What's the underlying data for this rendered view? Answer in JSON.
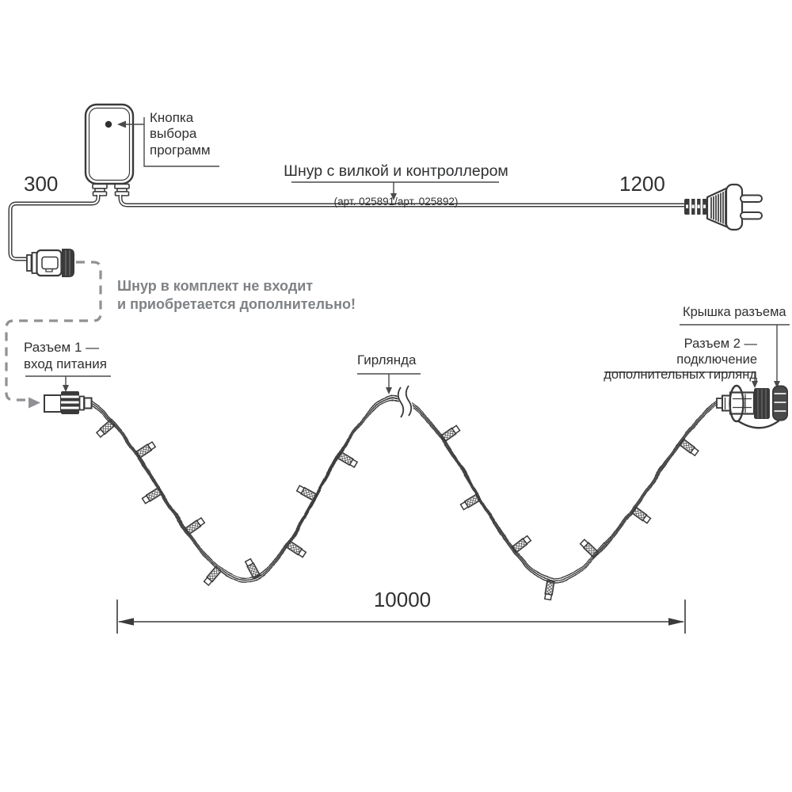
{
  "diagram": {
    "labels": {
      "program_button": "Кнопка\nвыбора\nпрограмм",
      "cord_title": "Шнур с вилкой и контроллером",
      "cord_articles": "(арт. 025891/арт. 025892)",
      "note": "Шнур в комплект не входит\nи приобретается дополнительно!",
      "connector1": "Разъем 1 —\nвход питания",
      "garland": "Гирлянда",
      "connector2": "Разъем 2 — подключение\nдополнительных гирлянд",
      "cap": "Крышка разъема"
    },
    "dimensions": {
      "left_cord": "300",
      "plug_cord": "1200",
      "garland_length": "10000"
    },
    "colors": {
      "line": "#3a3a3a",
      "text": "#2f3032",
      "note_gray": "#7f8285",
      "dash_gray": "#8f9194",
      "leader": "#4a4a4a"
    },
    "garland": {
      "led_count": 16,
      "led_positions": [
        {
          "t": 0.03,
          "side": "right"
        },
        {
          "t": 0.072,
          "side": "left"
        },
        {
          "t": 0.115,
          "side": "right"
        },
        {
          "t": 0.165,
          "side": "left"
        },
        {
          "t": 0.215,
          "side": "right"
        },
        {
          "t": 0.258,
          "side": "left"
        },
        {
          "t": 0.305,
          "side": "right"
        },
        {
          "t": 0.36,
          "side": "left"
        },
        {
          "t": 0.41,
          "side": "right"
        },
        {
          "t": 0.56,
          "side": "left"
        },
        {
          "t": 0.63,
          "side": "right"
        },
        {
          "t": 0.695,
          "side": "left"
        },
        {
          "t": 0.745,
          "side": "right"
        },
        {
          "t": 0.8,
          "side": "left"
        },
        {
          "t": 0.86,
          "side": "right"
        },
        {
          "t": 0.945,
          "side": "right"
        }
      ]
    }
  }
}
